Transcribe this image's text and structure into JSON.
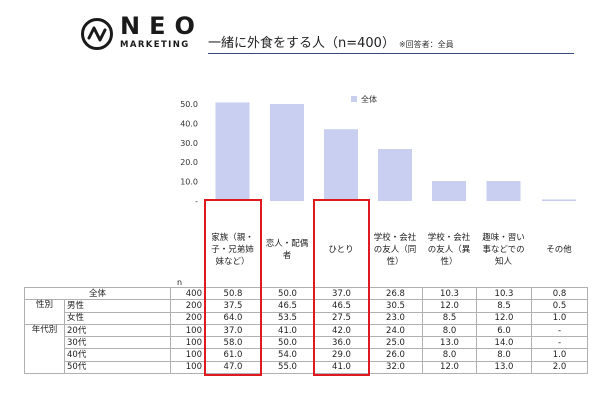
{
  "header": {
    "logo_text": "NEO",
    "logo_sub": "MARKETING",
    "title": "一緒に外食をする人（n=400）",
    "note": "※回答者：全員"
  },
  "colors": {
    "bar": "#c8cff0",
    "highlight": "#e0191f",
    "rule": "#3a4a7a"
  },
  "chart_data": {
    "type": "bar",
    "categories": [
      "家族（親・子・兄弟姉妹など）",
      "恋人・配偶者",
      "ひとり",
      "学校・会社の友人（同性）",
      "学校・会社の友人（異性）",
      "趣味・習い事などでの知人",
      "その他"
    ],
    "category_labels": [
      "家族（親・\n子・兄弟姉\n妹など）",
      "恋人・配偶\n者",
      "ひとり",
      "学校・会社\nの友人（同\n性）",
      "学校・会社\nの友人（異\n性）",
      "趣味・習い\n事などでの\n知人",
      "その他"
    ],
    "series": [
      {
        "name": "全体",
        "values": [
          50.8,
          50.0,
          37.0,
          26.8,
          10.3,
          10.3,
          0.8
        ]
      }
    ],
    "yticks": [
      "50.0",
      "40.0",
      "30.0",
      "20.0",
      "10.0",
      "-"
    ],
    "ylim": [
      0,
      60
    ],
    "legend_position": "top",
    "grid": false,
    "highlighted_categories": [
      "家族（親・子・兄弟姉妹など）",
      "ひとり"
    ]
  },
  "table": {
    "n_header": "n",
    "rows": [
      {
        "group": "",
        "label": "全体",
        "n": "400",
        "values": [
          "50.8",
          "50.0",
          "37.0",
          "26.8",
          "10.3",
          "10.3",
          "0.8"
        ]
      },
      {
        "group": "性別",
        "label": "男性",
        "n": "200",
        "values": [
          "37.5",
          "46.5",
          "46.5",
          "30.5",
          "12.0",
          "8.5",
          "0.5"
        ]
      },
      {
        "group": "",
        "label": "女性",
        "n": "200",
        "values": [
          "64.0",
          "53.5",
          "27.5",
          "23.0",
          "8.5",
          "12.0",
          "1.0"
        ]
      },
      {
        "group": "年代別",
        "label": "20代",
        "n": "100",
        "values": [
          "37.0",
          "41.0",
          "42.0",
          "24.0",
          "8.0",
          "6.0",
          "-"
        ]
      },
      {
        "group": "",
        "label": "30代",
        "n": "100",
        "values": [
          "58.0",
          "50.0",
          "36.0",
          "25.0",
          "13.0",
          "14.0",
          "-"
        ]
      },
      {
        "group": "",
        "label": "40代",
        "n": "100",
        "values": [
          "61.0",
          "54.0",
          "29.0",
          "26.0",
          "8.0",
          "8.0",
          "1.0"
        ]
      },
      {
        "group": "",
        "label": "50代",
        "n": "100",
        "values": [
          "47.0",
          "55.0",
          "41.0",
          "32.0",
          "12.0",
          "13.0",
          "2.0"
        ]
      }
    ]
  }
}
